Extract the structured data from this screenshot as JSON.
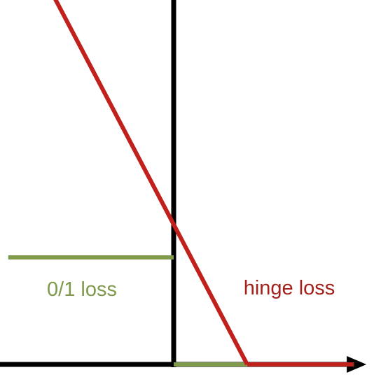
{
  "chart_data": {
    "type": "line",
    "title": "",
    "xlabel": "",
    "ylabel": "",
    "xlim": [
      -2.3,
      2.62
    ],
    "ylim": [
      0,
      4.84
    ],
    "grid": false,
    "legend": "none",
    "series": [
      {
        "name": "0/1 loss",
        "color": "#7f9a4a",
        "x": [
          -2.25,
          0,
          0,
          1,
          2.45
        ],
        "y": [
          1,
          1,
          0,
          0,
          0
        ]
      },
      {
        "name": "hinge loss",
        "color": "#c0211d",
        "x": [
          -2.25,
          1,
          2.45
        ],
        "y": [
          4.25,
          0,
          0
        ]
      }
    ],
    "labels": {
      "zero_one": "0/1 loss",
      "hinge": "hinge loss"
    }
  }
}
